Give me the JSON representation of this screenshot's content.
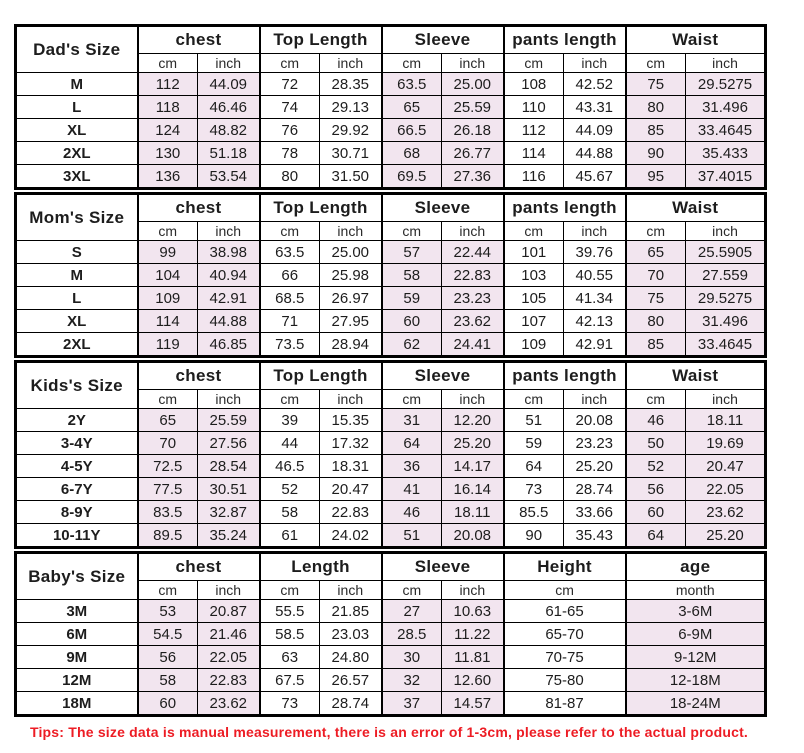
{
  "colors": {
    "highlight": "#f2e5ef",
    "border": "#000000",
    "tip_red": "#ed1c24",
    "text": "#1d1d1d"
  },
  "sections": [
    {
      "title": "Dad's Size",
      "groups": [
        {
          "label": "chest",
          "units": [
            "cm",
            "inch"
          ],
          "shaded": true
        },
        {
          "label": "Top Length",
          "units": [
            "cm",
            "inch"
          ],
          "shaded": false
        },
        {
          "label": "Sleeve",
          "units": [
            "cm",
            "inch"
          ],
          "shaded": true
        },
        {
          "label": "pants length",
          "units": [
            "cm",
            "inch"
          ],
          "shaded": false
        },
        {
          "label": "Waist",
          "units": [
            "cm",
            "inch"
          ],
          "shaded": true
        }
      ],
      "rows": [
        {
          "size": "M",
          "values": [
            "112",
            "44.09",
            "72",
            "28.35",
            "63.5",
            "25.00",
            "108",
            "42.52",
            "75",
            "29.5275"
          ]
        },
        {
          "size": "L",
          "values": [
            "118",
            "46.46",
            "74",
            "29.13",
            "65",
            "25.59",
            "110",
            "43.31",
            "80",
            "31.496"
          ]
        },
        {
          "size": "XL",
          "values": [
            "124",
            "48.82",
            "76",
            "29.92",
            "66.5",
            "26.18",
            "112",
            "44.09",
            "85",
            "33.4645"
          ]
        },
        {
          "size": "2XL",
          "values": [
            "130",
            "51.18",
            "78",
            "30.71",
            "68",
            "26.77",
            "114",
            "44.88",
            "90",
            "35.433"
          ]
        },
        {
          "size": "3XL",
          "values": [
            "136",
            "53.54",
            "80",
            "31.50",
            "69.5",
            "27.36",
            "116",
            "45.67",
            "95",
            "37.4015"
          ]
        }
      ]
    },
    {
      "title": "Mom's Size",
      "groups": [
        {
          "label": "chest",
          "units": [
            "cm",
            "inch"
          ],
          "shaded": true
        },
        {
          "label": "Top Length",
          "units": [
            "cm",
            "inch"
          ],
          "shaded": false
        },
        {
          "label": "Sleeve",
          "units": [
            "cm",
            "inch"
          ],
          "shaded": true
        },
        {
          "label": "pants length",
          "units": [
            "cm",
            "inch"
          ],
          "shaded": false
        },
        {
          "label": "Waist",
          "units": [
            "cm",
            "inch"
          ],
          "shaded": true
        }
      ],
      "rows": [
        {
          "size": "S",
          "values": [
            "99",
            "38.98",
            "63.5",
            "25.00",
            "57",
            "22.44",
            "101",
            "39.76",
            "65",
            "25.5905"
          ]
        },
        {
          "size": "M",
          "values": [
            "104",
            "40.94",
            "66",
            "25.98",
            "58",
            "22.83",
            "103",
            "40.55",
            "70",
            "27.559"
          ]
        },
        {
          "size": "L",
          "values": [
            "109",
            "42.91",
            "68.5",
            "26.97",
            "59",
            "23.23",
            "105",
            "41.34",
            "75",
            "29.5275"
          ]
        },
        {
          "size": "XL",
          "values": [
            "114",
            "44.88",
            "71",
            "27.95",
            "60",
            "23.62",
            "107",
            "42.13",
            "80",
            "31.496"
          ]
        },
        {
          "size": "2XL",
          "values": [
            "119",
            "46.85",
            "73.5",
            "28.94",
            "62",
            "24.41",
            "109",
            "42.91",
            "85",
            "33.4645"
          ]
        }
      ]
    },
    {
      "title": "Kids's Size",
      "groups": [
        {
          "label": "chest",
          "units": [
            "cm",
            "inch"
          ],
          "shaded": true
        },
        {
          "label": "Top Length",
          "units": [
            "cm",
            "inch"
          ],
          "shaded": false
        },
        {
          "label": "Sleeve",
          "units": [
            "cm",
            "inch"
          ],
          "shaded": true
        },
        {
          "label": "pants length",
          "units": [
            "cm",
            "inch"
          ],
          "shaded": false
        },
        {
          "label": "Waist",
          "units": [
            "cm",
            "inch"
          ],
          "shaded": true
        }
      ],
      "rows": [
        {
          "size": "2Y",
          "values": [
            "65",
            "25.59",
            "39",
            "15.35",
            "31",
            "12.20",
            "51",
            "20.08",
            "46",
            "18.11"
          ]
        },
        {
          "size": "3-4Y",
          "values": [
            "70",
            "27.56",
            "44",
            "17.32",
            "64",
            "25.20",
            "59",
            "23.23",
            "50",
            "19.69"
          ]
        },
        {
          "size": "4-5Y",
          "values": [
            "72.5",
            "28.54",
            "46.5",
            "18.31",
            "36",
            "14.17",
            "64",
            "25.20",
            "52",
            "20.47"
          ]
        },
        {
          "size": "6-7Y",
          "values": [
            "77.5",
            "30.51",
            "52",
            "20.47",
            "41",
            "16.14",
            "73",
            "28.74",
            "56",
            "22.05"
          ]
        },
        {
          "size": "8-9Y",
          "values": [
            "83.5",
            "32.87",
            "58",
            "22.83",
            "46",
            "18.11",
            "85.5",
            "33.66",
            "60",
            "23.62"
          ]
        },
        {
          "size": "10-11Y",
          "values": [
            "89.5",
            "35.24",
            "61",
            "24.02",
            "51",
            "20.08",
            "90",
            "35.43",
            "64",
            "25.20"
          ]
        }
      ]
    },
    {
      "title": "Baby's Size",
      "groups": [
        {
          "label": "chest",
          "units": [
            "cm",
            "inch"
          ],
          "shaded": true
        },
        {
          "label": "Length",
          "units": [
            "cm",
            "inch"
          ],
          "shaded": false
        },
        {
          "label": "Sleeve",
          "units": [
            "cm",
            "inch"
          ],
          "shaded": true
        },
        {
          "label": "Height",
          "units": [
            "cm"
          ],
          "shaded": false
        },
        {
          "label": "age",
          "units": [
            "month"
          ],
          "shaded": true
        }
      ],
      "rows": [
        {
          "size": "3M",
          "values": [
            "53",
            "20.87",
            "55.5",
            "21.85",
            "27",
            "10.63",
            "61-65",
            "3-6M"
          ]
        },
        {
          "size": "6M",
          "values": [
            "54.5",
            "21.46",
            "58.5",
            "23.03",
            "28.5",
            "11.22",
            "65-70",
            "6-9M"
          ]
        },
        {
          "size": "9M",
          "values": [
            "56",
            "22.05",
            "63",
            "24.80",
            "30",
            "11.81",
            "70-75",
            "9-12M"
          ]
        },
        {
          "size": "12M",
          "values": [
            "58",
            "22.83",
            "67.5",
            "26.57",
            "32",
            "12.60",
            "75-80",
            "12-18M"
          ]
        },
        {
          "size": "18M",
          "values": [
            "60",
            "23.62",
            "73",
            "28.74",
            "37",
            "14.57",
            "81-87",
            "18-24M"
          ]
        }
      ]
    }
  ],
  "footer": {
    "tip": "Tips: The size data is manual measurement, there is an error of 1-3cm, please refer to the actual product."
  }
}
